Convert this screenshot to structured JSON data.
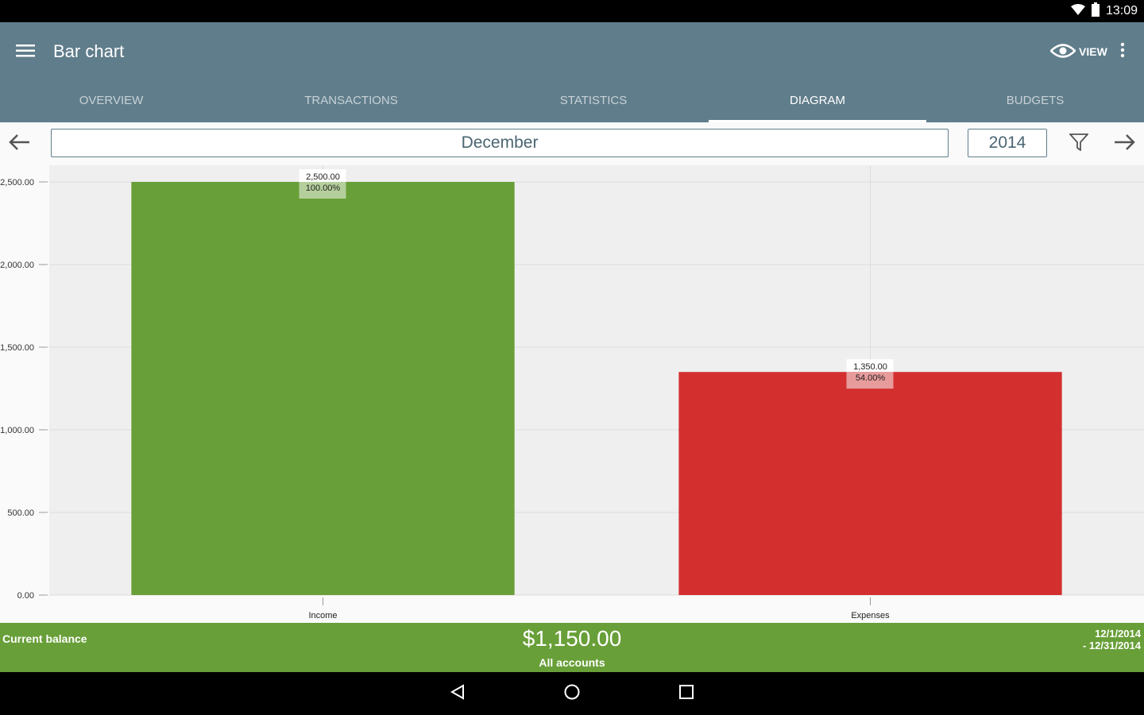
{
  "status_bar": {
    "time": "13:09",
    "icons": [
      "wifi-icon",
      "battery-icon"
    ]
  },
  "app_bar": {
    "title": "Bar chart",
    "view_label": "VIEW",
    "icons": [
      "menu-icon",
      "eye-icon",
      "overflow-icon"
    ]
  },
  "tabs": [
    {
      "label": "OVERVIEW",
      "active": false
    },
    {
      "label": "TRANSACTIONS",
      "active": false
    },
    {
      "label": "STATISTICS",
      "active": false
    },
    {
      "label": "DIAGRAM",
      "active": true
    },
    {
      "label": "BUDGETS",
      "active": false
    }
  ],
  "period": {
    "month": "December",
    "year": "2014",
    "icons": [
      "arrow-left-icon",
      "filter-icon",
      "arrow-right-icon"
    ]
  },
  "chart_data": {
    "type": "bar",
    "categories": [
      "Income",
      "Expenses"
    ],
    "values": [
      2500,
      1350
    ],
    "value_labels": [
      "2,500.00",
      "1,350.00"
    ],
    "percent_labels": [
      "100.00%",
      "54.00%"
    ],
    "colors": [
      "#689f38",
      "#d32f2f"
    ],
    "label_bg_colors": [
      "#b5cf9c",
      "#e89b9b"
    ],
    "yticks": [
      0,
      500,
      1000,
      1500,
      2000,
      2500
    ],
    "ytick_labels": [
      "0.00",
      "500.00",
      "1,000.00",
      "1,500.00",
      "2,000.00",
      "2,500.00"
    ],
    "ylim": [
      0,
      2500
    ],
    "grid": true
  },
  "footer": {
    "label": "Current balance",
    "amount": "$1,150.00",
    "accounts": "All accounts",
    "date_from": "12/1/2014",
    "date_to": "- 12/31/2014",
    "color": "#689f38"
  },
  "nav_bar": {
    "icons": [
      "back-icon",
      "home-icon",
      "recents-icon"
    ]
  }
}
